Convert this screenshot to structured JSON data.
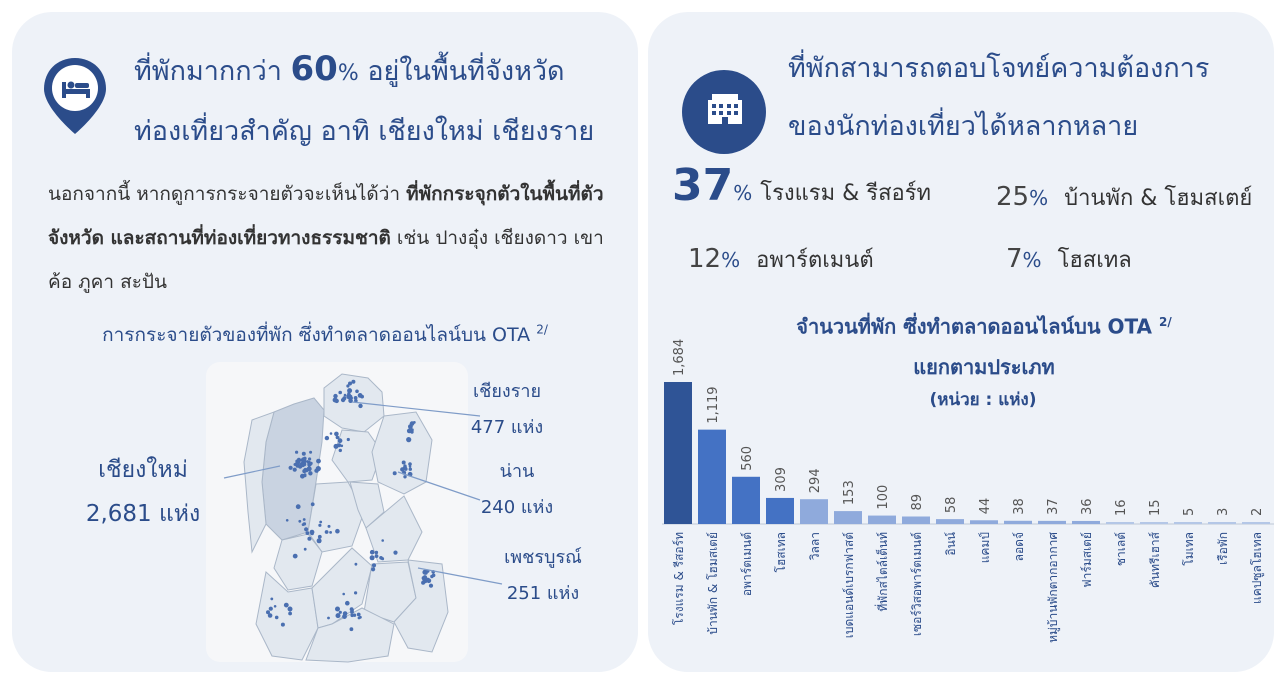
{
  "left": {
    "title_line1_a": "ที่พักมากกว่า ",
    "title_big": "60",
    "title_pct": "%",
    "title_line1_b": " อยู่ในพื้นที่จังหวัด",
    "title_line2": "ท่องเที่ยวสำคัญ อาทิ เชียงใหม่ เชียงราย",
    "para_a": "นอกจากนี้ หากดูการกระจายตัวจะเห็นได้ว่า ",
    "para_bold": "ที่พักกระจุกตัวในพื้นที่ตัวจังหวัด และสถานที่ท่องเที่ยวทางธรรมชาติ",
    "para_b": " เช่น ปางอุ๋ง เชียงดาว เขาค้อ ภูคา สะปัน",
    "map_caption": "การกระจายตัวของที่พัก ซึ่งทำตลาดออนไลน์บน OTA ",
    "map_caption_note": "2/",
    "provinces": [
      {
        "name": "เชียงใหม่",
        "count": "2,681 แห่ง"
      },
      {
        "name": "เชียงราย",
        "count": "477 แห่ง"
      },
      {
        "name": "น่าน",
        "count": "240 แห่ง"
      },
      {
        "name": "เพชรบูรณ์",
        "count": "251 แห่ง"
      }
    ]
  },
  "right": {
    "title_line1": "ที่พักสามารถตอบโจทย์ความต้องการ",
    "title_line2": "ของนักท่องเที่ยวได้หลากหลาย",
    "shares": [
      {
        "value": "37",
        "unit": "%",
        "label": "โรงแรม & รีสอร์ท"
      },
      {
        "value": "25",
        "unit": "%",
        "label": "บ้านพัก & โฮมสเตย์"
      },
      {
        "value": "12",
        "unit": "%",
        "label": "อพาร์ตเมนต์"
      },
      {
        "value": "7",
        "unit": "%",
        "label": "โฮสเทล"
      }
    ]
  },
  "colors": {
    "navy": "#2b4c8a",
    "panel": "#eef2f8",
    "bar_dark": "#2f5496",
    "bar_mid": "#4472c4",
    "bar_light": "#8faadc",
    "bar_pale": "#b4c7e7"
  },
  "icons": {
    "left": "map-pin-bed-icon",
    "right": "hotel-building-icon"
  },
  "chart_data": {
    "type": "bar",
    "title_line1": "จำนวนที่พัก ซึ่งทำตลาดออนไลน์บน OTA ",
    "title_note": "2/",
    "title_line2": "แยกตามประเภท",
    "unit": "(หน่วย : แห่ง)",
    "categories": [
      "โรงแรม & รีสอร์ท",
      "บ้านพัก & โฮมสเตย์",
      "อพาร์ตเมนต์",
      "โฮสเทล",
      "วิลลา",
      "เบดแอนด์เบรกฟาสต์",
      "ที่พักสไตล์เต็นท์",
      "เซอร์วิสอพาร์ตเมนต์",
      "อินน์",
      "แคมป์",
      "ลอดจ์",
      "หมู่บ้านพักตากอากาศ",
      "ฟาร์มสเตย์",
      "ชาเลต์",
      "คันทรีเฮาส์",
      "โมเทล",
      "เรือพัก",
      "แคปซูลโฮเทล"
    ],
    "values": [
      1684,
      1119,
      560,
      309,
      294,
      153,
      100,
      89,
      58,
      44,
      38,
      37,
      36,
      16,
      15,
      5,
      3,
      2
    ],
    "value_labels": [
      "1,684",
      "1,119",
      "560",
      "309",
      "294",
      "153",
      "100",
      "89",
      "58",
      "44",
      "38",
      "37",
      "36",
      "16",
      "15",
      "5",
      "3",
      "2"
    ],
    "ylim": [
      0,
      1684
    ]
  }
}
